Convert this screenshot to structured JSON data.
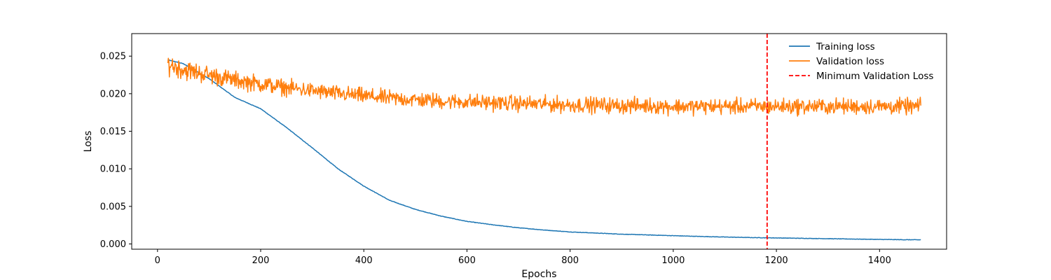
{
  "chart_data": {
    "type": "line",
    "xlabel": "Epochs",
    "ylabel": "Loss",
    "xlim": [
      -50,
      1530
    ],
    "ylim": [
      -0.0007,
      0.028
    ],
    "x_ticks": [
      0,
      200,
      400,
      600,
      800,
      1000,
      1200,
      1400
    ],
    "y_ticks": [
      0.0,
      0.005,
      0.01,
      0.015,
      0.02,
      0.025
    ],
    "y_tick_labels": [
      "0.000",
      "0.005",
      "0.010",
      "0.015",
      "0.020",
      "0.025"
    ],
    "grid": false,
    "legend_position": "top-right",
    "series": [
      {
        "name": "Training loss",
        "color": "#1f77b4",
        "style": "solid",
        "x": [
          20,
          50,
          100,
          150,
          200,
          250,
          300,
          350,
          400,
          450,
          500,
          550,
          600,
          650,
          700,
          750,
          800,
          850,
          900,
          950,
          1000,
          1050,
          1100,
          1150,
          1200,
          1250,
          1300,
          1350,
          1400,
          1450,
          1480
        ],
        "y": [
          0.0245,
          0.024,
          0.022,
          0.0195,
          0.018,
          0.0155,
          0.0128,
          0.01,
          0.0077,
          0.0058,
          0.0046,
          0.0037,
          0.003,
          0.00255,
          0.00215,
          0.00185,
          0.0016,
          0.00145,
          0.0013,
          0.0012,
          0.0011,
          0.001,
          0.00092,
          0.00085,
          0.0008,
          0.00075,
          0.0007,
          0.00065,
          0.0006,
          0.00056,
          0.00055
        ]
      },
      {
        "name": "Validation loss",
        "color": "#ff7f0e",
        "style": "solid",
        "x": [
          20,
          50,
          100,
          150,
          200,
          250,
          300,
          350,
          400,
          450,
          500,
          550,
          600,
          650,
          700,
          750,
          800,
          850,
          900,
          950,
          1000,
          1050,
          1100,
          1150,
          1200,
          1250,
          1300,
          1350,
          1400,
          1450,
          1480
        ],
        "y": [
          0.024,
          0.0232,
          0.0225,
          0.0218,
          0.0213,
          0.0208,
          0.0204,
          0.02,
          0.0197,
          0.0194,
          0.0192,
          0.019,
          0.0189,
          0.0188,
          0.0187,
          0.0186,
          0.0185,
          0.0185,
          0.0184,
          0.0184,
          0.0183,
          0.0183,
          0.0183,
          0.0183,
          0.0183,
          0.0183,
          0.0183,
          0.0183,
          0.0183,
          0.0183,
          0.0183
        ],
        "noise_amplitude": [
          0.0014,
          0.0014,
          0.0013,
          0.0012,
          0.0012,
          0.0011,
          0.0011,
          0.0011,
          0.0011,
          0.0011,
          0.0011,
          0.0011,
          0.0011,
          0.0011,
          0.0011,
          0.0011,
          0.0011,
          0.0011,
          0.0011,
          0.0011,
          0.0011,
          0.0011,
          0.0011,
          0.0011,
          0.0011,
          0.0011,
          0.0011,
          0.0011,
          0.0011,
          0.0011,
          0.0011
        ]
      }
    ],
    "vline": {
      "name": "Minimum Validation Loss",
      "x": 1182,
      "color": "#ff0000",
      "style": "dashed"
    }
  }
}
